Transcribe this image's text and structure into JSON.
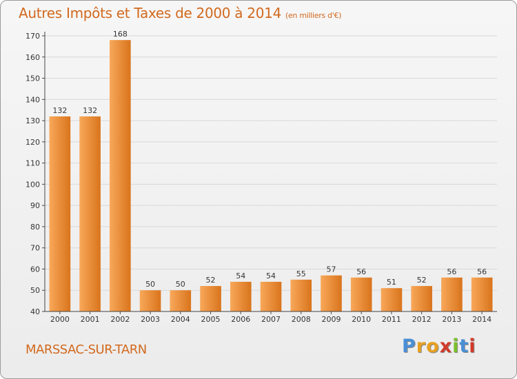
{
  "header": {
    "title": "Autres Impôts et Taxes de 2000 à 2014",
    "subtitle": "(en milliers d'€)"
  },
  "commune": "MARSSAC-SUR-TARN",
  "logo": {
    "text": "Proxiti",
    "colors": [
      "#4a8fd6",
      "#e8a020",
      "#e8a020",
      "#d23a2a",
      "#7bbf2a",
      "#4a8fd6",
      "#d23a2a"
    ]
  },
  "chart_data": {
    "type": "bar",
    "title": "Autres Impôts et Taxes de 2000 à 2014",
    "subtitle": "(en milliers d'€)",
    "categories": [
      "2000",
      "2001",
      "2002",
      "2003",
      "2004",
      "2005",
      "2006",
      "2007",
      "2008",
      "2009",
      "2010",
      "2011",
      "2012",
      "2013",
      "2014"
    ],
    "values": [
      132,
      132,
      168,
      50,
      50,
      52,
      54,
      54,
      55,
      57,
      56,
      51,
      52,
      56,
      56
    ],
    "ylim": [
      40,
      170
    ],
    "yticks": [
      40,
      50,
      60,
      70,
      80,
      90,
      100,
      110,
      120,
      130,
      140,
      150,
      160,
      170
    ],
    "grid": true,
    "bar_color_light": "#f8a85a",
    "bar_color_dark": "#d9741c",
    "grid_color": "#d8d8d8",
    "axis_color": "#444444"
  }
}
